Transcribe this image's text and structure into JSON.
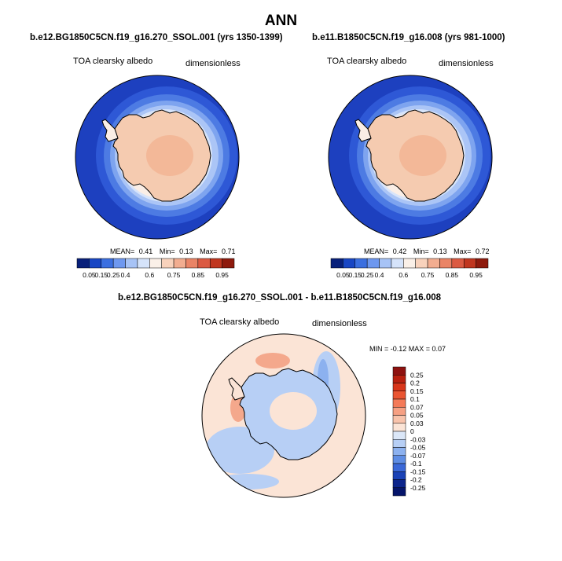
{
  "main_title": "ANN",
  "panels": [
    {
      "case": "b.e12.BG1850C5CN.f19_g16.270_SSOL.001 (yrs 1350-1399)",
      "variable": "TOA clearsky albedo",
      "units": "dimensionless",
      "stats": {
        "mean_label": "MEAN=",
        "mean": "0.41",
        "min_label": "Min=",
        "min": "0.13",
        "max_label": "Max=",
        "max": "0.71"
      }
    },
    {
      "case": "b.e11.B1850C5CN.f19_g16.008 (yrs 981-1000)",
      "variable": "TOA clearsky albedo",
      "units": "dimensionless",
      "stats": {
        "mean_label": "MEAN=",
        "mean": "0.42",
        "min_label": "Min=",
        "min": "0.13",
        "max_label": "Max=",
        "max": "0.72"
      }
    }
  ],
  "abs_colorbar": {
    "labels": [
      "0.05",
      "0.15",
      "0.25",
      "0.4",
      "0.6",
      "0.75",
      "0.85",
      "0.95"
    ],
    "colors": [
      "#08207a",
      "#1846c4",
      "#3b6fe0",
      "#6e98f0",
      "#a7c3f6",
      "#d5e3fa",
      "#faf0e8",
      "#f8d2bc",
      "#f2ad90",
      "#ea8466",
      "#db5a42",
      "#c0361f",
      "#8e1a0d"
    ]
  },
  "diff": {
    "title": "b.e12.BG1850C5CN.f19_g16.270_SSOL.001 - b.e11.B1850C5CN.f19_g16.008",
    "variable": "TOA clearsky albedo",
    "units": "dimensionless",
    "stats": "MIN = -0.12 MAX =  0.07",
    "colorbar": {
      "labels": [
        "0.25",
        "0.2",
        "0.15",
        "0.1",
        "0.07",
        "0.05",
        "0.03",
        "0",
        "-0.03",
        "-0.05",
        "-0.07",
        "-0.1",
        "-0.15",
        "-0.2",
        "-0.25"
      ],
      "colors": [
        "#8e1210",
        "#b8200f",
        "#d8361a",
        "#ea5532",
        "#f47a58",
        "#f6a083",
        "#f8c3ab",
        "#fbe4d6",
        "#dbe7f8",
        "#b7cff5",
        "#8cb1ef",
        "#5e8de4",
        "#3a68d8",
        "#1a42b6",
        "#0c258c",
        "#05156a"
      ]
    }
  },
  "palette": {
    "land": "#f5cbb0",
    "land_interior": "#f3b898",
    "ice1": "#faeee6",
    "ice2": "#d7e4fa",
    "ice3": "#abc5f6",
    "ice4": "#7ea4ef",
    "ice5": "#4d7be3",
    "ocean": "#2e58d6",
    "ocean_dark": "#1d40bf",
    "diff_base": "#fbe4d6",
    "diff_blue": "#b7cff5",
    "diff_blue2": "#8cb1ef",
    "diff_red": "#f4a88c",
    "coast": "#000000"
  }
}
